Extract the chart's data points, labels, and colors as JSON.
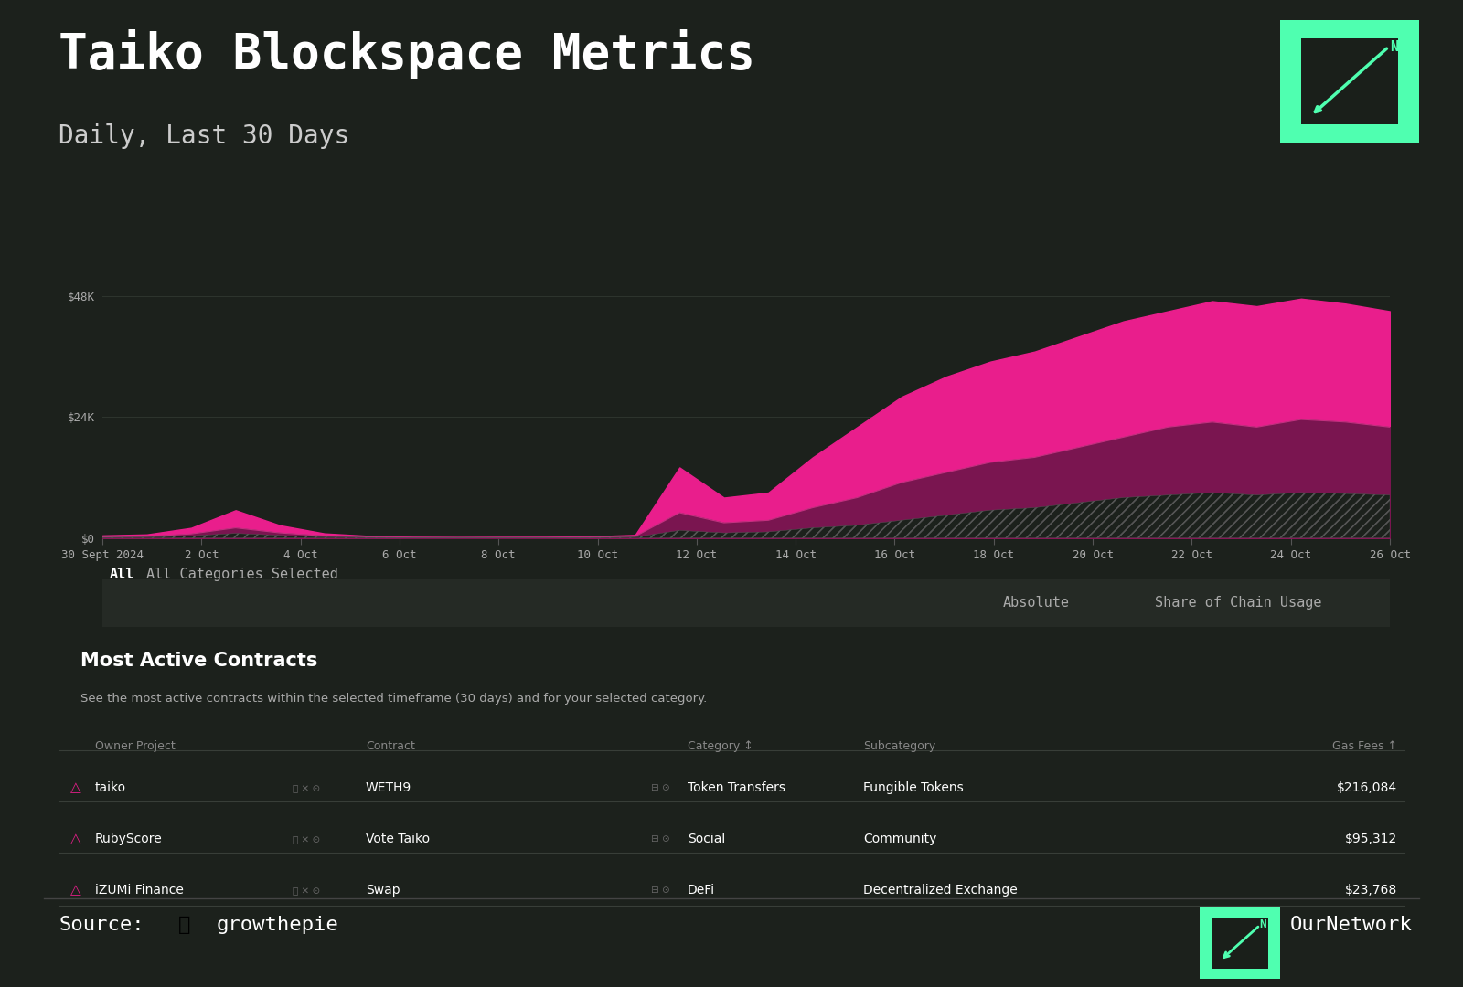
{
  "title": "Taiko Blockspace Metrics",
  "subtitle": "Daily, Last 30 Days",
  "bg_color": "#1c211c",
  "chart_bg": "#1c211c",
  "text_color": "#ffffff",
  "subtitle_color": "#cccccc",
  "x_labels": [
    "30 Sept 2024",
    "2 Oct",
    "4 Oct",
    "6 Oct",
    "8 Oct",
    "10 Oct",
    "12 Oct",
    "14 Oct",
    "16 Oct",
    "18 Oct",
    "20 Oct",
    "22 Oct",
    "24 Oct",
    "26 Oct"
  ],
  "y_max": 48000,
  "pink_area": [
    500,
    700,
    2000,
    5500,
    2500,
    900,
    400,
    200,
    150,
    180,
    200,
    300,
    600,
    14000,
    8000,
    9000,
    16000,
    22000,
    28000,
    32000,
    35000,
    37000,
    40000,
    43000,
    45000,
    47000,
    46000,
    47500,
    46500,
    45000
  ],
  "dark_area": [
    200,
    300,
    800,
    2000,
    1000,
    400,
    200,
    100,
    80,
    100,
    100,
    150,
    300,
    5000,
    3000,
    3500,
    6000,
    8000,
    11000,
    13000,
    15000,
    16000,
    18000,
    20000,
    22000,
    23000,
    22000,
    23500,
    23000,
    22000
  ],
  "hatch_area": [
    100,
    150,
    400,
    900,
    500,
    200,
    100,
    50,
    40,
    50,
    60,
    80,
    150,
    1500,
    1000,
    1200,
    2000,
    2500,
    3500,
    4500,
    5500,
    6000,
    7000,
    8000,
    8500,
    9000,
    8500,
    9000,
    8800,
    8500
  ],
  "pink_color": "#e91e8c",
  "dark_pink_color": "#7a1550",
  "filter_label": "All",
  "filter_text": "All Categories Selected",
  "button_labels": [
    "Absolute",
    "Share of Chain Usage"
  ],
  "table_title": "Most Active Contracts",
  "table_subtitle": "See the most active contracts within the selected timeframe (30 days) and for your selected category.",
  "table_headers": [
    "Owner Project",
    "Contract",
    "Category ↕",
    "Subcategory",
    "Gas Fees ↑"
  ],
  "table_rows": [
    [
      "taiko",
      "WETH9",
      "Token Transfers",
      "Fungible Tokens",
      "$216,084"
    ],
    [
      "RubyScore",
      "Vote Taiko",
      "Social",
      "Community",
      "$95,312"
    ],
    [
      "iZUMi Finance",
      "Swap",
      "DeFi",
      "Decentralized Exchange",
      "$23,768"
    ]
  ],
  "icon_color": "#e91e8c",
  "accent_green": "#4fffb0",
  "grid_color": "#2e352e",
  "separator_color": "#444444"
}
